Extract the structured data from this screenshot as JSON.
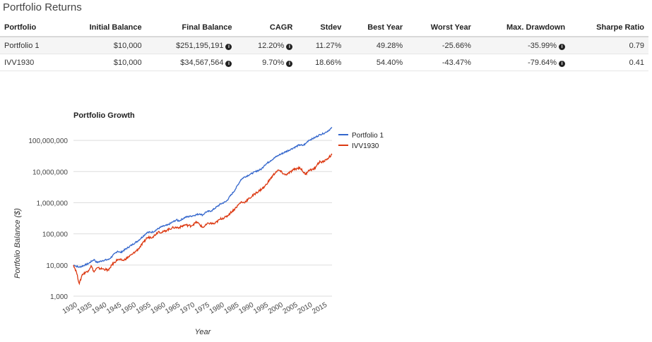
{
  "section_title": "Portfolio Returns",
  "table": {
    "columns": [
      "Portfolio",
      "Initial Balance",
      "Final Balance",
      "CAGR",
      "Stdev",
      "Best Year",
      "Worst Year",
      "Max. Drawdown",
      "Sharpe Ratio"
    ],
    "rows": [
      {
        "portfolio": "Portfolio 1",
        "initial": "$10,000",
        "final": "$251,195,191",
        "cagr": "12.20%",
        "stdev": "11.27%",
        "best": "49.28%",
        "worst": "-25.66%",
        "drawdown": "-35.99%",
        "sharpe": "0.79"
      },
      {
        "portfolio": "IVV1930",
        "initial": "$10,000",
        "final": "$34,567,564",
        "cagr": "9.70%",
        "stdev": "18.66%",
        "best": "54.40%",
        "worst": "-43.47%",
        "drawdown": "-79.64%",
        "sharpe": "0.41"
      }
    ],
    "info_icon": "info-circle-icon"
  },
  "chart_data": {
    "type": "line",
    "title": "Portfolio Growth",
    "xlabel": "Year",
    "ylabel": "Portfolio Balance ($)",
    "yscale": "log",
    "ylim": [
      1000,
      300000000
    ],
    "xlim": [
      1930,
      2018
    ],
    "x_ticks": [
      1930,
      1935,
      1940,
      1945,
      1950,
      1955,
      1960,
      1965,
      1970,
      1975,
      1980,
      1985,
      1990,
      1995,
      2000,
      2005,
      2010,
      2015
    ],
    "y_ticks": [
      1000,
      10000,
      100000,
      1000000,
      10000000,
      100000000
    ],
    "y_tick_labels": [
      "1,000",
      "10,000",
      "100,000",
      "1,000,000",
      "10,000,000",
      "100,000,000"
    ],
    "grid": true,
    "legend_position": "right",
    "series": [
      {
        "name": "Portfolio 1",
        "color": "#3366cc",
        "points": [
          [
            1930,
            10000
          ],
          [
            1932,
            8500
          ],
          [
            1935,
            11000
          ],
          [
            1937,
            15000
          ],
          [
            1938,
            12000
          ],
          [
            1940,
            14000
          ],
          [
            1942,
            15000
          ],
          [
            1945,
            28000
          ],
          [
            1946,
            25000
          ],
          [
            1950,
            45000
          ],
          [
            1952,
            60000
          ],
          [
            1955,
            110000
          ],
          [
            1957,
            115000
          ],
          [
            1960,
            170000
          ],
          [
            1962,
            190000
          ],
          [
            1965,
            280000
          ],
          [
            1966,
            260000
          ],
          [
            1968,
            340000
          ],
          [
            1970,
            370000
          ],
          [
            1973,
            440000
          ],
          [
            1974,
            400000
          ],
          [
            1975,
            500000
          ],
          [
            1977,
            550000
          ],
          [
            1980,
            900000
          ],
          [
            1982,
            1100000
          ],
          [
            1985,
            2600000
          ],
          [
            1987,
            5500000
          ],
          [
            1988,
            6500000
          ],
          [
            1990,
            8000000
          ],
          [
            1992,
            10000000
          ],
          [
            1994,
            12000000
          ],
          [
            1995,
            16000000
          ],
          [
            1997,
            22000000
          ],
          [
            1999,
            30000000
          ],
          [
            2000,
            34000000
          ],
          [
            2002,
            42000000
          ],
          [
            2004,
            52000000
          ],
          [
            2005,
            58000000
          ],
          [
            2007,
            72000000
          ],
          [
            2008,
            68000000
          ],
          [
            2009,
            78000000
          ],
          [
            2010,
            100000000
          ],
          [
            2012,
            120000000
          ],
          [
            2014,
            155000000
          ],
          [
            2015,
            165000000
          ],
          [
            2016,
            185000000
          ],
          [
            2017,
            215000000
          ],
          [
            2018,
            251195191
          ]
        ]
      },
      {
        "name": "IVV1930",
        "color": "#dc3912",
        "points": [
          [
            1930,
            10000
          ],
          [
            1931,
            6000
          ],
          [
            1932,
            2500
          ],
          [
            1933,
            5000
          ],
          [
            1935,
            6500
          ],
          [
            1936,
            9500
          ],
          [
            1937,
            6000
          ],
          [
            1938,
            8000
          ],
          [
            1940,
            7500
          ],
          [
            1942,
            6800
          ],
          [
            1943,
            10000
          ],
          [
            1945,
            15000
          ],
          [
            1947,
            14000
          ],
          [
            1950,
            22000
          ],
          [
            1952,
            32000
          ],
          [
            1954,
            55000
          ],
          [
            1955,
            75000
          ],
          [
            1957,
            80000
          ],
          [
            1959,
            120000
          ],
          [
            1960,
            110000
          ],
          [
            1962,
            135000
          ],
          [
            1964,
            160000
          ],
          [
            1966,
            160000
          ],
          [
            1968,
            195000
          ],
          [
            1970,
            180000
          ],
          [
            1972,
            240000
          ],
          [
            1974,
            160000
          ],
          [
            1976,
            220000
          ],
          [
            1978,
            210000
          ],
          [
            1980,
            300000
          ],
          [
            1982,
            350000
          ],
          [
            1985,
            650000
          ],
          [
            1987,
            1050000
          ],
          [
            1988,
            1000000
          ],
          [
            1990,
            1400000
          ],
          [
            1992,
            2000000
          ],
          [
            1995,
            3200000
          ],
          [
            1997,
            5800000
          ],
          [
            1999,
            10000000
          ],
          [
            2000,
            11000000
          ],
          [
            2002,
            7800000
          ],
          [
            2003,
            8500000
          ],
          [
            2005,
            11500000
          ],
          [
            2007,
            13500000
          ],
          [
            2009,
            8000000
          ],
          [
            2010,
            11000000
          ],
          [
            2012,
            12000000
          ],
          [
            2013,
            17000000
          ],
          [
            2014,
            21000000
          ],
          [
            2015,
            20000000
          ],
          [
            2016,
            24000000
          ],
          [
            2017,
            29000000
          ],
          [
            2018,
            34567564
          ]
        ]
      }
    ]
  }
}
